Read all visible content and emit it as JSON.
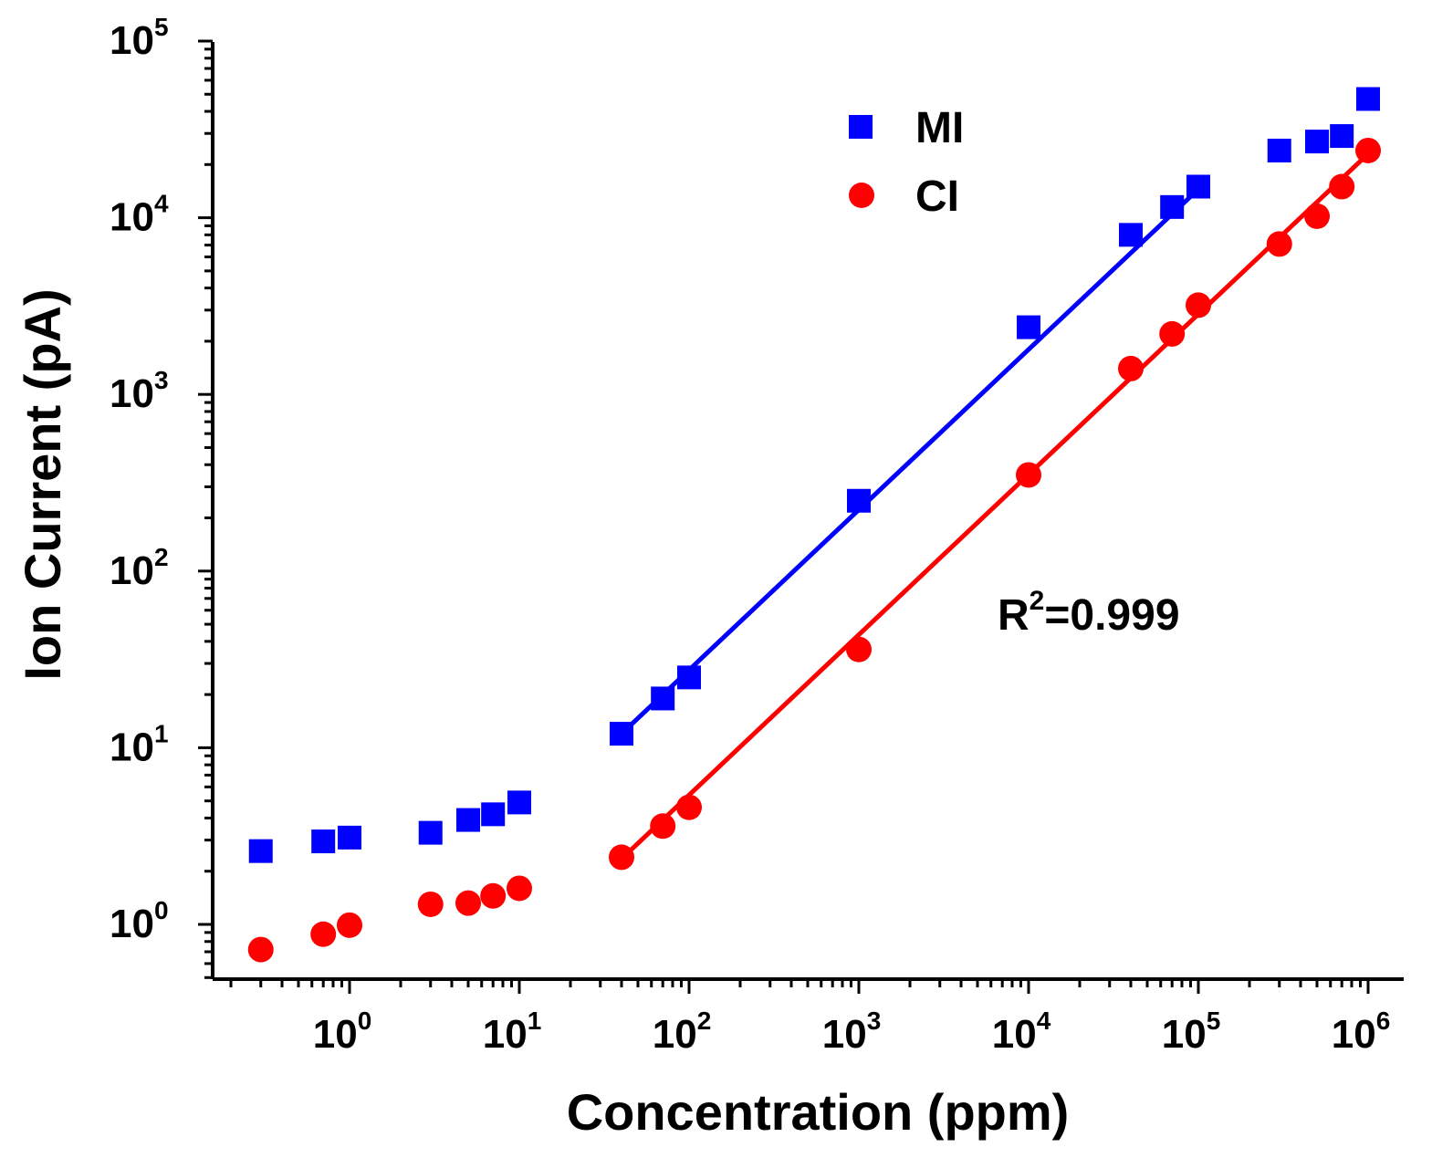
{
  "chart_data": {
    "type": "scatter",
    "xscale": "log",
    "yscale": "log",
    "xlabel": "Concentration (ppm)",
    "ylabel": "Ion Current (pA)",
    "xlim": [
      0.18,
      1800000.0
    ],
    "ylim": [
      0.5,
      100000
    ],
    "x_ticks": [
      1,
      10,
      100,
      1000,
      10000,
      100000,
      1000000
    ],
    "x_tick_labels": [
      {
        "base": "10",
        "exp": "0"
      },
      {
        "base": "10",
        "exp": "1"
      },
      {
        "base": "10",
        "exp": "2"
      },
      {
        "base": "10",
        "exp": "3"
      },
      {
        "base": "10",
        "exp": "4"
      },
      {
        "base": "10",
        "exp": "5"
      },
      {
        "base": "10",
        "exp": "6"
      }
    ],
    "y_ticks": [
      1,
      10,
      100,
      1000,
      10000,
      100000
    ],
    "y_tick_labels": [
      {
        "base": "10",
        "exp": "0"
      },
      {
        "base": "10",
        "exp": "1"
      },
      {
        "base": "10",
        "exp": "2"
      },
      {
        "base": "10",
        "exp": "3"
      },
      {
        "base": "10",
        "exp": "4"
      },
      {
        "base": "10",
        "exp": "5"
      }
    ],
    "legend_position": "top-center",
    "series": [
      {
        "name": "MI",
        "marker": "square",
        "color": "#0000ff",
        "x": [
          0.3,
          0.7,
          1,
          3,
          5,
          7,
          10,
          40,
          70,
          100,
          1000,
          10000,
          40000,
          70000,
          100000,
          300000,
          500000,
          700000,
          1000000
        ],
        "y": [
          2.6,
          2.95,
          3.1,
          3.3,
          3.9,
          4.2,
          4.9,
          12,
          19,
          25,
          250,
          2400,
          8000,
          11500,
          15000,
          24000,
          27000,
          29000,
          47000
        ],
        "fit": {
          "x": [
            40,
            100000
          ],
          "y": [
            12,
            14500
          ]
        }
      },
      {
        "name": "CI",
        "marker": "circle",
        "color": "#ff0000",
        "x": [
          0.3,
          0.7,
          1,
          3,
          5,
          7,
          10,
          40,
          70,
          100,
          1000,
          10000,
          40000,
          70000,
          100000,
          300000,
          500000,
          700000,
          1000000
        ],
        "y": [
          0.72,
          0.88,
          0.99,
          1.3,
          1.32,
          1.45,
          1.6,
          2.4,
          3.6,
          4.6,
          36,
          350,
          1400,
          2200,
          3200,
          7100,
          10200,
          15000,
          24000
        ],
        "fit": {
          "x": [
            40,
            1000000
          ],
          "y": [
            2.35,
            23000
          ]
        }
      }
    ],
    "annotation": {
      "text": "R",
      "sup": "2",
      "rest": "=0.999"
    }
  }
}
